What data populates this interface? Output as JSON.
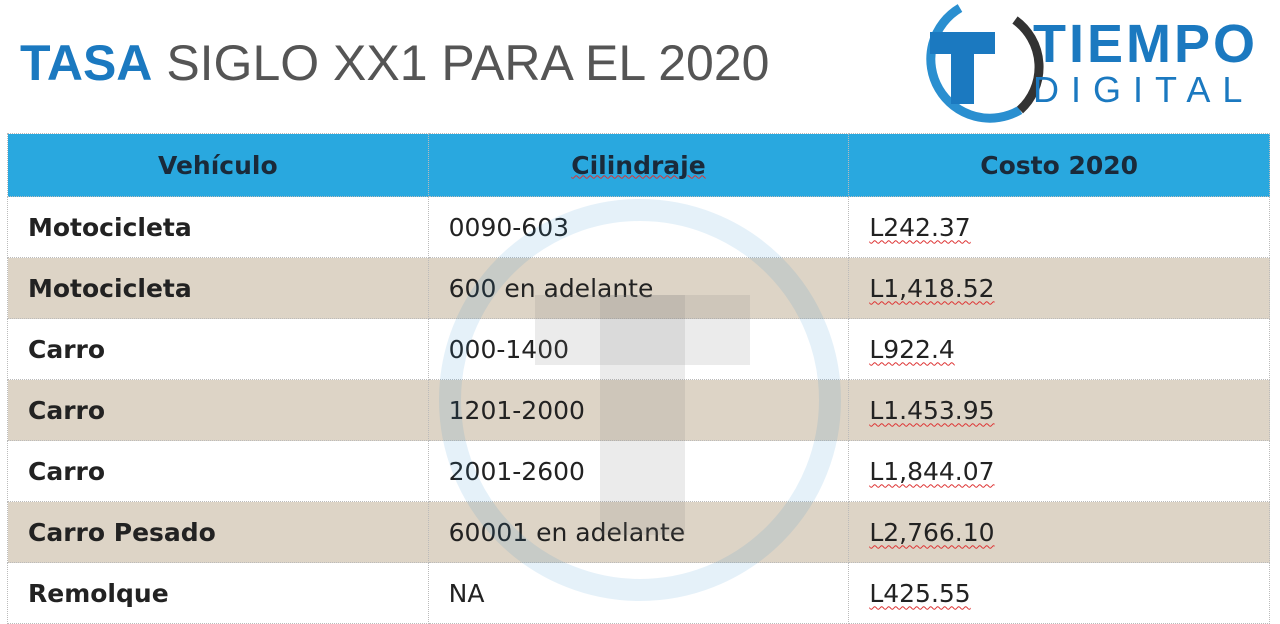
{
  "header": {
    "title_bold": "TASA",
    "title_rest": "SIGLO XX1 PARA EL 2020"
  },
  "logo": {
    "line1": "TIEMPO",
    "line2": "DIGITAL"
  },
  "table": {
    "columns": [
      "Vehículo",
      "Cilindraje",
      "Costo 2020"
    ],
    "rows": [
      [
        "Motocicleta",
        "0090-603",
        "L242.37"
      ],
      [
        "Motocicleta",
        "600 en adelante",
        "L1,418.52"
      ],
      [
        "Carro",
        "000-1400",
        "L922.4"
      ],
      [
        "Carro",
        "1201-2000",
        "L1.453.95"
      ],
      [
        "Carro",
        "2001-2600",
        "L1,844.07"
      ],
      [
        "Carro Pesado",
        "60001 en adelante",
        "L2,766.10"
      ],
      [
        "Remolque",
        "NA",
        "L425.55"
      ]
    ]
  }
}
